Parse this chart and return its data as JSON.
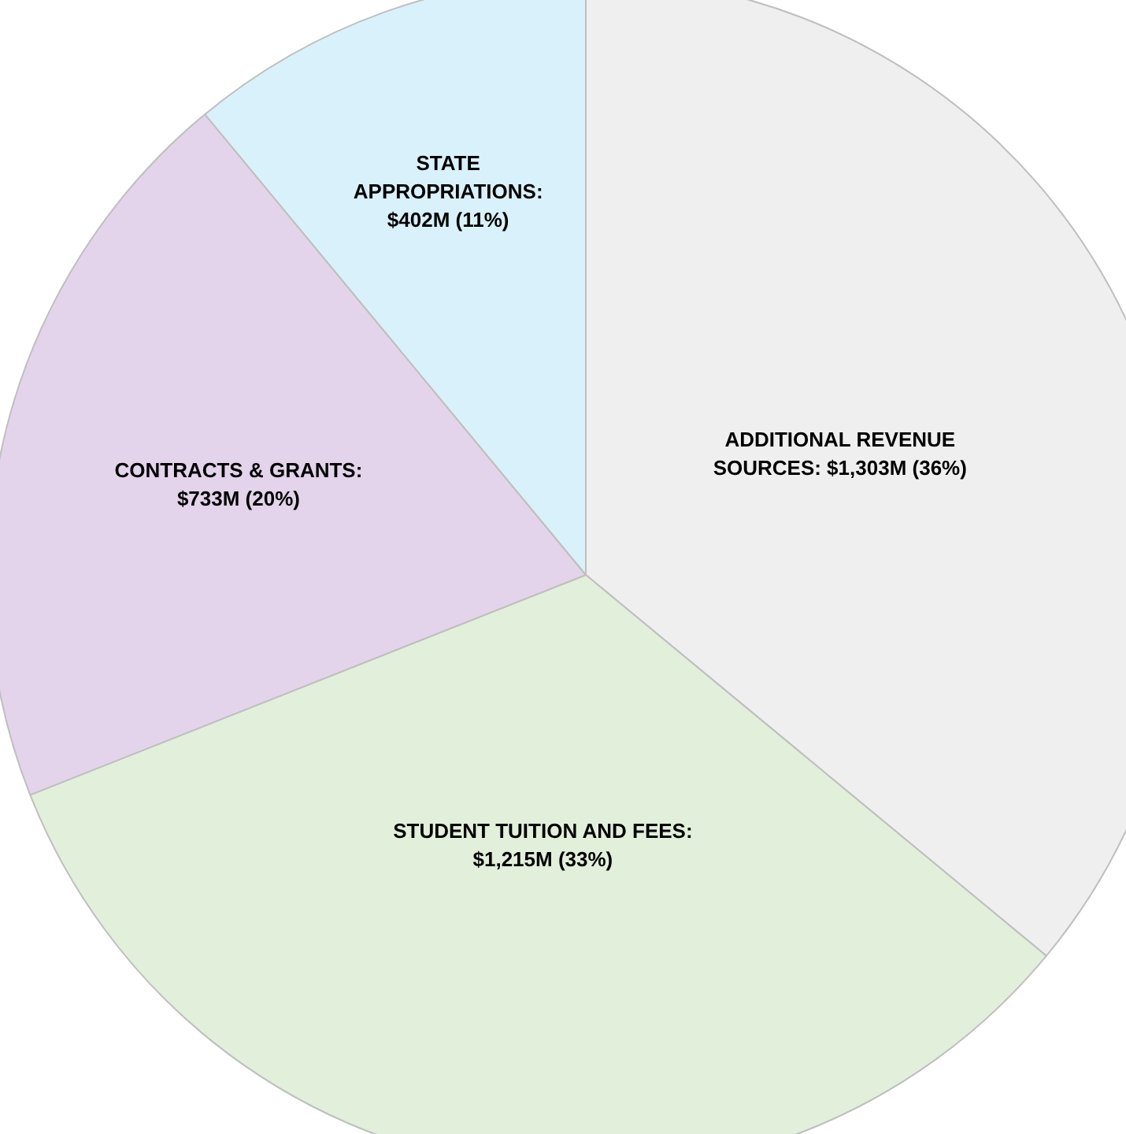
{
  "chart_data": {
    "type": "pie",
    "categories": [
      "ADDITIONAL REVENUE SOURCES",
      "STUDENT TUITION AND FEES",
      "CONTRACTS & GRANTS",
      "STATE APPROPRIATIONS"
    ],
    "values": [
      36,
      33,
      20,
      11
    ],
    "value_labels": [
      ": $1,303M (36%)",
      ": $1,215M (33%)",
      ": $733M (20%)",
      ": $402M (11%)"
    ],
    "colors": [
      "#efefef",
      "#e2efda",
      "#e4d4eb",
      "#d9f1fa"
    ],
    "legend": false
  }
}
